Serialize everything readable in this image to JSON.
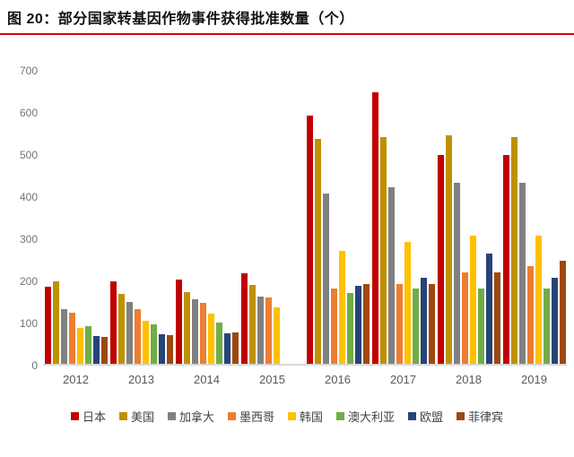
{
  "title": "图 20：部分国家转基因作物事件获得批准数量（个）",
  "accent_line_color": "#e00000",
  "chart_data": {
    "type": "bar",
    "title": "部分国家转基因作物事件获得批准数量（个）",
    "xlabel": "",
    "ylabel": "",
    "ylim": [
      0,
      700
    ],
    "yticks": [
      0,
      100,
      200,
      300,
      400,
      500,
      600,
      700
    ],
    "grid": false,
    "legend_position": "bottom",
    "categories": [
      "2012",
      "2013",
      "2014",
      "2015",
      "2016",
      "2017",
      "2018",
      "2019"
    ],
    "series": [
      {
        "key": "japan",
        "name": "日本",
        "color": "#c00000",
        "values": [
          182,
          196,
          200,
          215,
          590,
          645,
          495,
          495
        ]
      },
      {
        "key": "usa",
        "name": "美国",
        "color": "#bf9000",
        "values": [
          196,
          165,
          170,
          187,
          535,
          538,
          542,
          538
        ]
      },
      {
        "key": "canada",
        "name": "加拿大",
        "color": "#808080",
        "values": [
          130,
          147,
          153,
          160,
          405,
          420,
          430,
          430
        ]
      },
      {
        "key": "mexico",
        "name": "墨西哥",
        "color": "#ed7d31",
        "values": [
          122,
          130,
          145,
          158,
          178,
          190,
          218,
          232
        ]
      },
      {
        "key": "korea",
        "name": "韩国",
        "color": "#ffc000",
        "values": [
          85,
          103,
          120,
          135,
          268,
          290,
          305,
          305
        ]
      },
      {
        "key": "australia",
        "name": "澳大利亚",
        "color": "#70ad47",
        "values": [
          90,
          93,
          97,
          null,
          168,
          178,
          178,
          178
        ]
      },
      {
        "key": "eu",
        "name": "欧盟",
        "color": "#264478",
        "values": [
          67,
          70,
          72,
          null,
          185,
          205,
          262,
          205
        ]
      },
      {
        "key": "philippines",
        "name": "菲律宾",
        "color": "#9e480e",
        "values": [
          63,
          68,
          74,
          null,
          190,
          190,
          218,
          245
        ]
      }
    ]
  }
}
